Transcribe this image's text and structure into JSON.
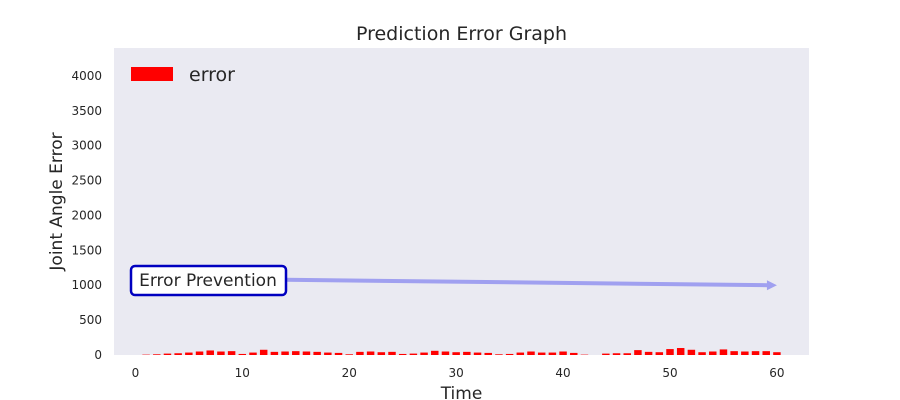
{
  "chart_data": {
    "type": "bar",
    "title": "Prediction Error Graph",
    "xlabel": "Time",
    "ylabel": "Joint Angle Error",
    "xlim": [
      -2,
      63
    ],
    "ylim": [
      0,
      4400
    ],
    "x_ticks": [
      0,
      10,
      20,
      30,
      40,
      50,
      60
    ],
    "y_ticks": [
      0,
      500,
      1000,
      1500,
      2000,
      2500,
      3000,
      3500,
      4000
    ],
    "grid": false,
    "legend": {
      "position": "top-left",
      "entries": [
        "error"
      ]
    },
    "colors": {
      "bar": "#ff0000",
      "background": "#eaeaf2",
      "arrow": "#a0a0f0",
      "annotation_border": "#0000c0"
    },
    "series": [
      {
        "name": "error",
        "x": [
          1,
          2,
          3,
          4,
          5,
          6,
          7,
          8,
          9,
          10,
          11,
          12,
          13,
          14,
          15,
          16,
          17,
          18,
          19,
          20,
          21,
          22,
          23,
          24,
          25,
          26,
          27,
          28,
          29,
          30,
          31,
          32,
          33,
          34,
          35,
          36,
          37,
          38,
          39,
          40,
          41,
          42,
          43,
          44,
          45,
          46,
          47,
          48,
          49,
          50,
          51,
          52,
          53,
          54,
          55,
          56,
          57,
          58,
          59,
          60
        ],
        "values": [
          5,
          10,
          20,
          25,
          35,
          50,
          65,
          50,
          55,
          15,
          35,
          75,
          45,
          50,
          55,
          50,
          45,
          35,
          30,
          10,
          45,
          50,
          40,
          45,
          15,
          20,
          35,
          60,
          50,
          40,
          45,
          35,
          30,
          10,
          15,
          35,
          50,
          35,
          35,
          50,
          30,
          5,
          0,
          20,
          25,
          25,
          70,
          45,
          40,
          85,
          100,
          75,
          40,
          50,
          80,
          55,
          50,
          55,
          55,
          40
        ]
      }
    ],
    "annotations": [
      {
        "text": "Error Prevention",
        "text_xy": [
          0,
          1050
        ],
        "arrow_to": [
          60,
          1000
        ]
      }
    ]
  }
}
